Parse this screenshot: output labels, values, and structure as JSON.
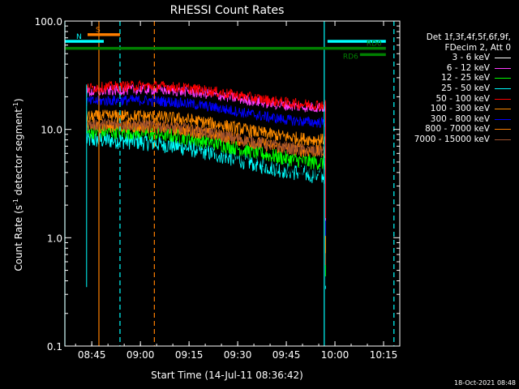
{
  "chart_data": {
    "type": "line",
    "title": "RHESSI Count Rates",
    "xlabel": "Start Time (14-Jul-11 08:36:42)",
    "ylabel": "Count Rate (s",
    "ylabel_sup1": "-1",
    "ylabel_mid": " detector segment",
    "ylabel_sup2": "-1",
    "ylabel_end": ")",
    "yscale": "log",
    "ylim": [
      0.1,
      100
    ],
    "xlim_minutes": [
      0,
      103.3
    ],
    "x_ticks": [
      {
        "label": "08:45",
        "t": 8.3
      },
      {
        "label": "09:00",
        "t": 23.3
      },
      {
        "label": "09:15",
        "t": 38.3
      },
      {
        "label": "09:30",
        "t": 53.3
      },
      {
        "label": "09:45",
        "t": 68.3
      },
      {
        "label": "10:00",
        "t": 83.3
      },
      {
        "label": "10:15",
        "t": 98.3
      }
    ],
    "y_ticks": [
      {
        "label": "100.0",
        "v": 100
      },
      {
        "label": "10.0",
        "v": 10
      },
      {
        "label": "1.0",
        "v": 1
      },
      {
        "label": "0.1",
        "v": 0.1
      }
    ],
    "data_interval_minutes": [
      6.7,
      80.4
    ],
    "series": [
      {
        "name": "3 - 6 keV",
        "color": "#000000",
        "start": 11.5,
        "end": 4.5,
        "noise": 0.1
      },
      {
        "name": "6 - 12 keV",
        "color": "#ff3cff",
        "start": 22.0,
        "end": 18.0,
        "noise": 0.05
      },
      {
        "name": "12 - 25 keV",
        "color": "#00ff00",
        "start": 9.5,
        "end": 5.5,
        "noise": 0.07
      },
      {
        "name": "25 - 50 keV",
        "color": "#00ffff",
        "start": 8.0,
        "end": 4.2,
        "noise": 0.08
      },
      {
        "name": "50 - 100 keV",
        "color": "#ff0000",
        "start": 24.0,
        "end": 19.0,
        "noise": 0.05
      },
      {
        "name": "100 - 300 keV",
        "color": "#ff8c00",
        "start": 13.0,
        "end": 9.0,
        "noise": 0.06
      },
      {
        "name": "300 - 800 keV",
        "color": "#0000ff",
        "start": 18.0,
        "end": 13.0,
        "noise": 0.05
      },
      {
        "name": "800 - 7000 keV",
        "color": "#ff7f00",
        "start": 10.5,
        "end": 7.0,
        "noise": 0.06
      },
      {
        "name": "7000 - 15000 keV",
        "color": "#a0522d",
        "start": 11.0,
        "end": 7.0,
        "noise": 0.06
      }
    ],
    "flag_bars": [
      {
        "label": "S",
        "color": "#ff7f00",
        "t0": 7.0,
        "t1": 17.0,
        "v": 75
      },
      {
        "label": "N",
        "color": "#00ffff",
        "t0": 0.0,
        "t1": 12.0,
        "v": 65
      },
      {
        "label": "",
        "color": "#00ffff",
        "t0": 81.0,
        "t1": 99.0,
        "v": 65
      },
      {
        "label": "",
        "color": "#008000",
        "t0": 0.0,
        "t1": 91.0,
        "v": 56
      },
      {
        "label": "RD0",
        "color": "#008000",
        "t0": 85.0,
        "t1": 99.0,
        "v": 56
      },
      {
        "label": "RD6",
        "color": "#008000",
        "t0": 91.0,
        "t1": 99.0,
        "v": 49
      }
    ],
    "vlines": [
      {
        "t": 0.0,
        "color": "#00ffff",
        "dash": false
      },
      {
        "t": 10.5,
        "color": "#ff7f00",
        "dash": false
      },
      {
        "t": 17.0,
        "color": "#00ffff",
        "dash": true
      },
      {
        "t": 27.6,
        "color": "#ff7f00",
        "dash": true
      },
      {
        "t": 80.0,
        "color": "#00ffff",
        "dash": false
      },
      {
        "t": 101.5,
        "color": "#00ffff",
        "dash": true
      }
    ]
  },
  "legend": {
    "line1": "Det 1f,3f,4f,5f,6f,9f,",
    "line2": "FDecim 2, Att 0"
  },
  "footer": {
    "timestamp": "18-Oct-2021 08:48"
  },
  "colors": {
    "background": "#000000",
    "axis": "#ffffff"
  }
}
